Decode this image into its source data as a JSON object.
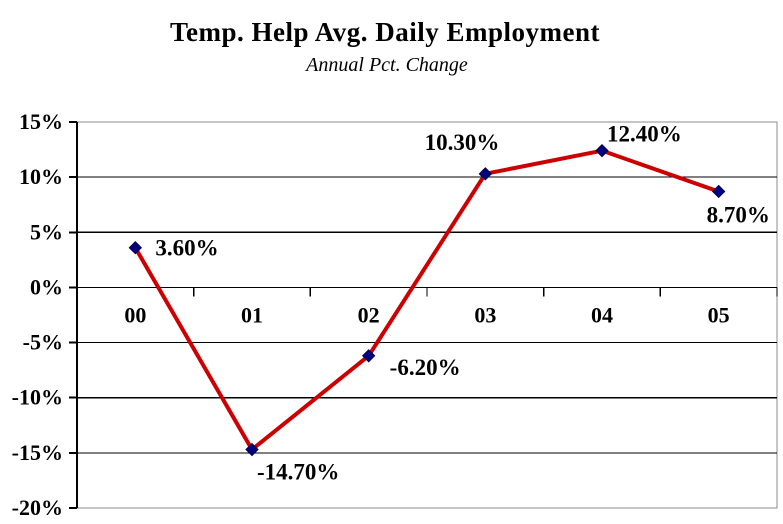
{
  "chart_data": {
    "type": "line",
    "title": "Temp. Help Avg. Daily Employment",
    "subtitle": "Annual Pct. Change",
    "categories": [
      "00",
      "01",
      "02",
      "03",
      "04",
      "05"
    ],
    "series": [
      {
        "name": "Annual Pct. Change",
        "values": [
          3.6,
          -14.7,
          -6.2,
          10.3,
          12.4,
          8.7
        ],
        "point_labels": [
          "3.60%",
          "-14.70%",
          "-6.20%",
          "10.30%",
          "12.40%",
          "8.70%"
        ]
      }
    ],
    "ylim": [
      -20,
      15
    ],
    "ytick_step": 5,
    "ytick_labels": [
      "15%",
      "10%",
      "5%",
      "0%",
      "-5%",
      "-10%",
      "-15%",
      "-20%"
    ],
    "ytick_values": [
      15,
      10,
      5,
      0,
      -5,
      -10,
      -15,
      -20
    ],
    "grid": "horizontal-on",
    "legend": "none",
    "colors": {
      "line": "#cc0000",
      "marker": "#000080",
      "gridline": "#000000",
      "plot_border": "#8c8c8c",
      "text": "#000000",
      "background": "#ffffff"
    },
    "marker_shape": "diamond"
  }
}
